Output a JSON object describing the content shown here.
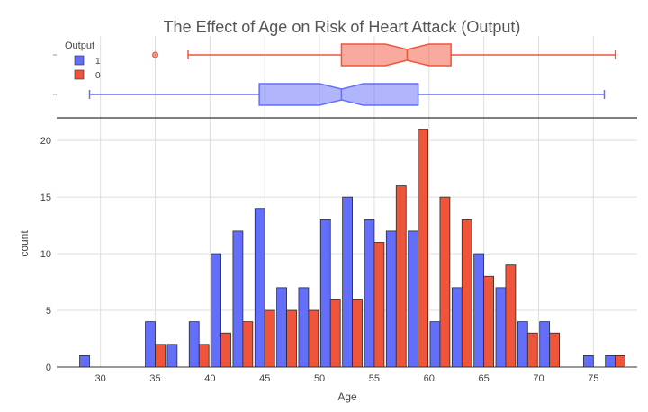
{
  "chart_data": [
    {
      "type": "box",
      "title": "The Effect of Age on Risk of Heart Attack (Output)",
      "legend": {
        "title": "Output",
        "placement": "top-left",
        "entries": [
          "1",
          "0"
        ]
      },
      "series": [
        {
          "name": "0",
          "color": "#ef553b",
          "min": 38,
          "q1": 52,
          "median": 58,
          "q3": 62,
          "max": 77,
          "notch_low": 56,
          "notch_high": 60,
          "outliers": [
            35
          ]
        },
        {
          "name": "1",
          "color": "#636efa",
          "min": 29,
          "q1": 44.5,
          "median": 52,
          "q3": 59,
          "max": 76,
          "notch_low": 50,
          "notch_high": 54,
          "outliers": []
        }
      ]
    },
    {
      "type": "bar",
      "xlabel": "Age",
      "ylabel": "count",
      "xlim": [
        26,
        79
      ],
      "ylim": [
        0,
        22
      ],
      "x_ticks": [
        "30",
        "35",
        "40",
        "45",
        "50",
        "55",
        "60",
        "65",
        "70",
        "75"
      ],
      "y_ticks": [
        "0",
        "5",
        "10",
        "15",
        "20"
      ],
      "bin_starts": [
        28,
        30,
        32,
        34,
        36,
        38,
        40,
        42,
        44,
        46,
        48,
        50,
        52,
        54,
        56,
        58,
        60,
        62,
        64,
        66,
        68,
        70,
        72,
        74,
        76
      ],
      "bin_width": 2,
      "grid": true,
      "series": [
        {
          "name": "1",
          "color": "#636efa",
          "values": [
            1,
            0,
            0,
            4,
            2,
            4,
            10,
            12,
            14,
            7,
            7,
            13,
            15,
            13,
            12,
            12,
            4,
            7,
            10,
            7,
            4,
            4,
            0,
            1,
            1
          ]
        },
        {
          "name": "0",
          "color": "#ef553b",
          "values": [
            0,
            0,
            0,
            2,
            0,
            2,
            3,
            4,
            5,
            5,
            5,
            6,
            6,
            11,
            16,
            21,
            15,
            13,
            8,
            9,
            3,
            3,
            0,
            0,
            1
          ]
        }
      ]
    }
  ]
}
